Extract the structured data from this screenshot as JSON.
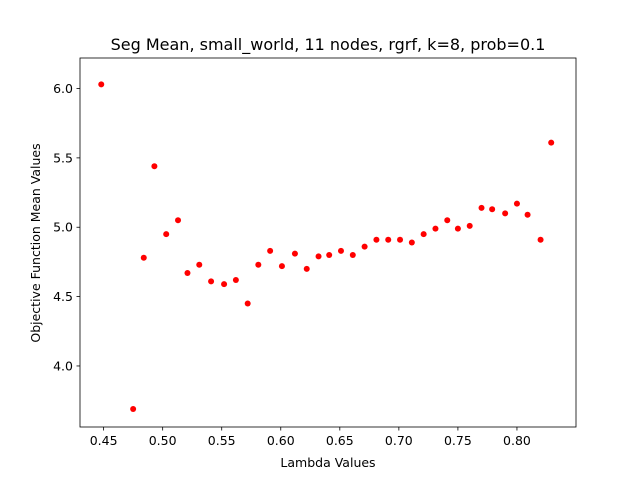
{
  "chart_data": {
    "type": "scatter",
    "title": "Seg Mean, small_world, 11 nodes, rgrf, k=8, prob=0.1",
    "xlabel": "Lambda Values",
    "ylabel": "Objective Function Mean Values",
    "xlim": [
      0.43,
      0.85
    ],
    "ylim": [
      3.56,
      6.22
    ],
    "xticks": [
      0.45,
      0.5,
      0.55,
      0.6,
      0.65,
      0.7,
      0.75,
      0.8
    ],
    "xtick_labels": [
      "0.45",
      "0.50",
      "0.55",
      "0.60",
      "0.65",
      "0.70",
      "0.75",
      "0.80"
    ],
    "yticks": [
      4.0,
      4.5,
      5.0,
      5.5,
      6.0
    ],
    "ytick_labels": [
      "4.0",
      "4.5",
      "5.0",
      "5.5",
      "6.0"
    ],
    "grid": false,
    "marker_color": "#ff0000",
    "series": [
      {
        "x": [
          0.448,
          0.475,
          0.484,
          0.493,
          0.503,
          0.513,
          0.521,
          0.531,
          0.541,
          0.552,
          0.562,
          0.572,
          0.581,
          0.591,
          0.601,
          0.612,
          0.622,
          0.632,
          0.641,
          0.651,
          0.661,
          0.671,
          0.681,
          0.691,
          0.701,
          0.711,
          0.721,
          0.731,
          0.741,
          0.75,
          0.76,
          0.77,
          0.779,
          0.79,
          0.8,
          0.809,
          0.82,
          0.829
        ],
        "y": [
          6.03,
          3.69,
          4.78,
          5.44,
          4.95,
          5.05,
          4.67,
          4.73,
          4.61,
          4.59,
          4.62,
          4.45,
          4.73,
          4.83,
          4.72,
          4.81,
          4.7,
          4.79,
          4.8,
          4.83,
          4.8,
          4.86,
          4.91,
          4.91,
          4.91,
          4.89,
          4.95,
          4.99,
          5.05,
          4.99,
          5.01,
          5.14,
          5.13,
          5.1,
          5.17,
          5.09,
          4.91,
          5.61
        ]
      }
    ]
  }
}
